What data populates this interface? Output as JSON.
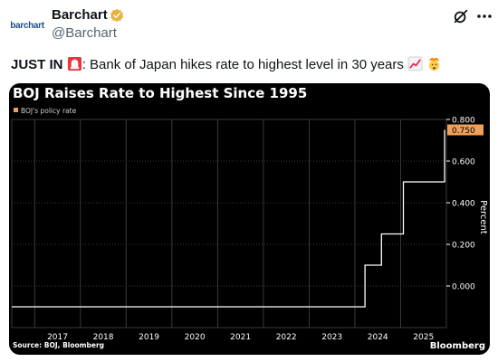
{
  "author": {
    "name": "Barchart",
    "handle": "@Barchart",
    "avatar_text": "barchart",
    "verified_icon": "verified-gold-badge-icon"
  },
  "tweet": {
    "lead": "JUST IN",
    "text": ": Bank of Japan hikes rate to highest level in 30 years",
    "emojis": [
      "siren-light-icon",
      "chart-increasing-icon",
      "exploding-head-icon"
    ]
  },
  "actions": {
    "grok_icon": "grok-slash-icon",
    "more_icon": "more-dots-icon"
  },
  "colors": {
    "line": "#ffffff",
    "accent": "#f0a05a",
    "badge": "#f0a05a",
    "chart_bg": "#000000",
    "grid": "#3a3a3a"
  },
  "chart_data": {
    "type": "line",
    "title": "BOJ Raises Rate to Highest Since 1995",
    "legend": "BOJ's policy rate",
    "legend_placement": "top-left",
    "ylabel": "Percent",
    "ylim": [
      -0.2,
      0.8
    ],
    "yticks": [
      "0.800",
      "0.600",
      "0.400",
      "0.200",
      "0.000"
    ],
    "ytick_values": [
      0.8,
      0.6,
      0.4,
      0.2,
      0.0
    ],
    "xticks": [
      "2017",
      "2018",
      "2019",
      "2020",
      "2021",
      "2022",
      "2023",
      "2024",
      "2025"
    ],
    "xlim": [
      2016.5,
      2026.0
    ],
    "last_value_label": "0.750",
    "series": [
      {
        "x": [
          2016.5,
          2024.22,
          2024.22,
          2024.58,
          2024.58,
          2025.06,
          2025.06,
          2025.96,
          2025.96
        ],
        "y": [
          -0.1,
          -0.1,
          0.1,
          0.1,
          0.25,
          0.25,
          0.5,
          0.5,
          0.75
        ]
      }
    ],
    "source": "Source: BOJ, Bloomberg",
    "brand": "Bloomberg"
  }
}
